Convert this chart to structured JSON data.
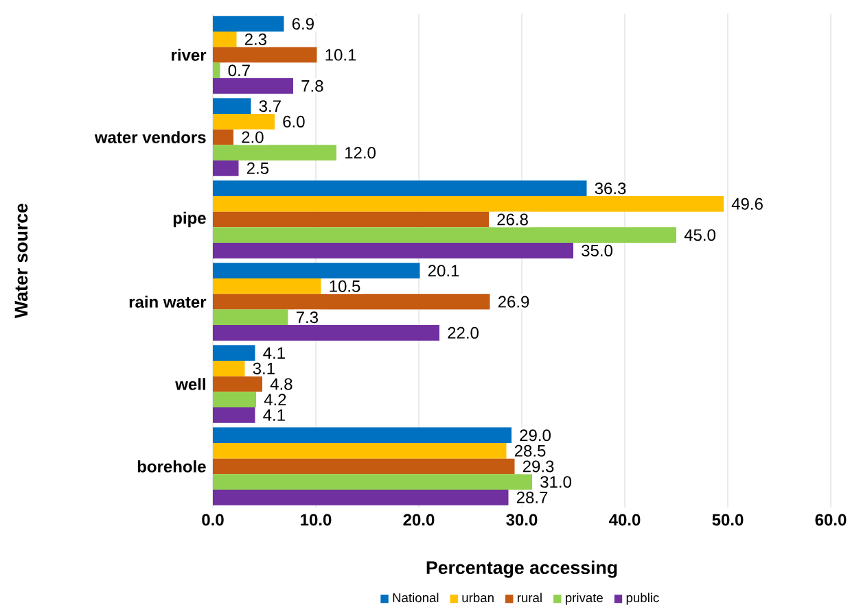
{
  "chart_data": {
    "type": "bar",
    "orientation": "horizontal",
    "xlabel": "Percentage accessing",
    "ylabel": "Water source",
    "categories": [
      "river",
      "water vendors",
      "pipe",
      "rain water",
      "well",
      "borehole"
    ],
    "series": [
      {
        "name": "National",
        "color": "#0070c0",
        "values": [
          6.9,
          3.7,
          36.3,
          20.1,
          4.1,
          29.0
        ],
        "value_labels": [
          "6.9",
          "3.7",
          "36.3",
          "20.1",
          "4.1",
          "29.0"
        ]
      },
      {
        "name": "urban",
        "color": "#ffc000",
        "values": [
          2.3,
          6.0,
          49.6,
          10.5,
          3.1,
          28.5
        ],
        "value_labels": [
          "2.3",
          "6.0",
          "49.6",
          "10.5",
          "3.1",
          "28.5"
        ]
      },
      {
        "name": "rural",
        "color": "#c55a11",
        "values": [
          10.1,
          2.0,
          26.8,
          26.9,
          4.8,
          29.3
        ],
        "value_labels": [
          "10.1",
          "2.0",
          "26.8",
          "26.9",
          "4.8",
          "29.3"
        ]
      },
      {
        "name": "private",
        "color": "#92d050",
        "values": [
          0.7,
          12.0,
          45.0,
          7.3,
          4.2,
          31.0
        ],
        "value_labels": [
          "0.7",
          "12.0",
          "45.0",
          "7.3",
          "4.2",
          "31.0"
        ]
      },
      {
        "name": "public",
        "color": "#7030a0",
        "values": [
          7.8,
          2.5,
          35.0,
          22.0,
          4.1,
          28.7
        ],
        "value_labels": [
          "7.8",
          "2.5",
          "35.0",
          "22.0",
          "4.1",
          "28.7"
        ]
      }
    ],
    "xlim": [
      0,
      60
    ],
    "xticks": [
      {
        "value": 0,
        "label": "0.0"
      },
      {
        "value": 10,
        "label": "10.0"
      },
      {
        "value": 20,
        "label": "20.0"
      },
      {
        "value": 30,
        "label": "30.0"
      },
      {
        "value": 40,
        "label": "40.0"
      },
      {
        "value": 50,
        "label": "50.0"
      },
      {
        "value": 60,
        "label": "60.0"
      }
    ],
    "grid": "x",
    "legend": "bottom"
  }
}
